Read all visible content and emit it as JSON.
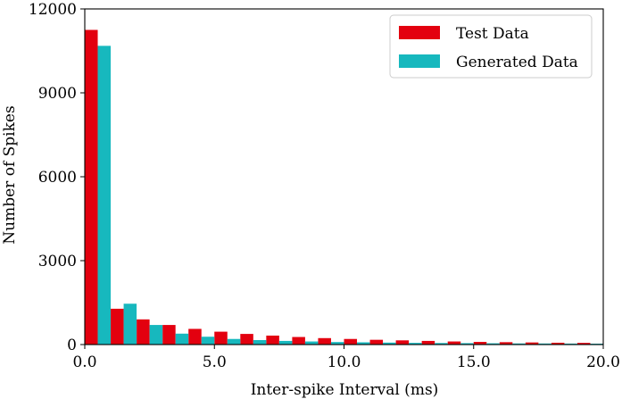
{
  "chart_data": {
    "type": "bar",
    "xlabel": "Inter-spike Interval (ms)",
    "ylabel": "Number of Spikes",
    "xlim": [
      0,
      20
    ],
    "ylim": [
      0,
      12000
    ],
    "xticks": [
      "0.0",
      "5.0",
      "10.0",
      "15.0",
      "20.0"
    ],
    "yticks": [
      "0",
      "3000",
      "6000",
      "9000",
      "12000"
    ],
    "grid": false,
    "legend_position": "top-right",
    "bin_starts": [
      0,
      1,
      2,
      3,
      4,
      5,
      6,
      7,
      8,
      9,
      10,
      11,
      12,
      13,
      14,
      15,
      16,
      17,
      18,
      19
    ],
    "series": [
      {
        "name": "Test Data",
        "color": "#e3000f",
        "values": [
          11250,
          1280,
          900,
          700,
          560,
          460,
          380,
          320,
          270,
          230,
          200,
          170,
          150,
          130,
          110,
          95,
          85,
          75,
          65,
          60
        ]
      },
      {
        "name": "Generated Data",
        "color": "#17b8be",
        "values": [
          10680,
          1460,
          700,
          390,
          280,
          200,
          160,
          130,
          110,
          90,
          80,
          70,
          60,
          55,
          50,
          45,
          40,
          38,
          35,
          32
        ]
      }
    ]
  }
}
